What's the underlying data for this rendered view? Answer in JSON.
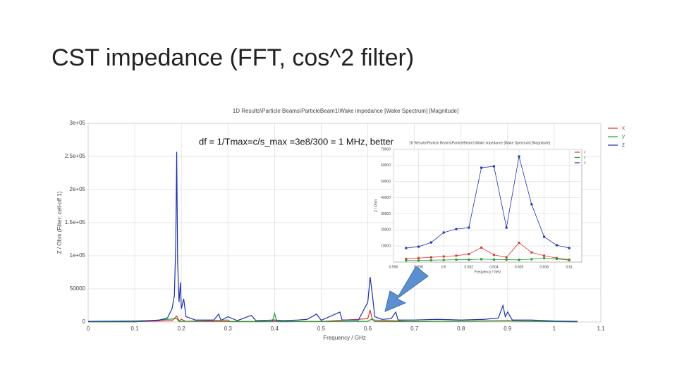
{
  "slide": {
    "title": "CST impedance (FFT, cos^2 filter)",
    "annotation": "df = 1/Tmax=c/s_max =3e8/300 = 1 MHz, better"
  },
  "chart_data": [
    {
      "type": "line",
      "title": "1D Results\\Particle Beams\\ParticleBeam1\\Wake impedance [Wake Spectrum] [Magnitude]",
      "xlabel": "Frequency / GHz",
      "ylabel": "Z / Ohm (Filter: cell-off 1)",
      "xlim": [
        0,
        1.1
      ],
      "ylim": [
        0,
        300000
      ],
      "xticks": [
        0,
        0.1,
        0.2,
        0.3,
        0.4,
        0.5,
        0.6,
        0.7,
        0.8,
        0.9,
        1,
        1.1
      ],
      "yticks": [
        0,
        50000,
        {
          "value": 100000,
          "label": "1e+05"
        },
        {
          "value": 150000,
          "label": "1.5e+05"
        },
        {
          "value": 200000,
          "label": "2e+05"
        },
        {
          "value": 250000,
          "label": "2.5e+05"
        },
        {
          "value": 300000,
          "label": "3e+05"
        }
      ],
      "grid": true,
      "legend": "top-right",
      "series": [
        {
          "name": "x",
          "color": "#e03030",
          "x": [
            0,
            0.1,
            0.18,
            0.19,
            0.195,
            0.2,
            0.21,
            0.3,
            0.5,
            0.6,
            0.605,
            0.61,
            0.7,
            0.9,
            1.05
          ],
          "values": [
            300,
            500,
            2000,
            9000,
            2000,
            4000,
            1000,
            800,
            800,
            5000,
            18000,
            3000,
            800,
            2000,
            300
          ]
        },
        {
          "name": "y",
          "color": "#20a020",
          "x": [
            0,
            0.1,
            0.19,
            0.195,
            0.3,
            0.305,
            0.395,
            0.4,
            0.405,
            0.6,
            0.61,
            0.615,
            0.9,
            1.05
          ],
          "values": [
            200,
            300,
            5000,
            800,
            3000,
            500,
            500,
            13000,
            500,
            1000,
            5000,
            600,
            1500,
            200
          ]
        },
        {
          "name": "z",
          "color": "#1a2fb8",
          "x": [
            0,
            0.05,
            0.1,
            0.15,
            0.17,
            0.18,
            0.185,
            0.188,
            0.19,
            0.192,
            0.195,
            0.198,
            0.2,
            0.205,
            0.21,
            0.23,
            0.27,
            0.28,
            0.285,
            0.3,
            0.32,
            0.35,
            0.36,
            0.4,
            0.42,
            0.45,
            0.47,
            0.49,
            0.5,
            0.54,
            0.545,
            0.58,
            0.6,
            0.605,
            0.61,
            0.615,
            0.63,
            0.65,
            0.66,
            0.665,
            0.7,
            0.75,
            0.8,
            0.85,
            0.88,
            0.89,
            0.895,
            0.9,
            0.91,
            0.95,
            1,
            1.05
          ],
          "values": [
            1000,
            1200,
            1500,
            2500,
            6000,
            20000,
            40000,
            120000,
            257000,
            90000,
            30000,
            60000,
            20000,
            35000,
            8000,
            3000,
            3000,
            12000,
            2500,
            8000,
            2000,
            10000,
            2000,
            3000,
            2000,
            3000,
            4000,
            12000,
            2500,
            15000,
            3000,
            3000,
            30000,
            68000,
            40000,
            8000,
            4000,
            5000,
            15000,
            3000,
            3000,
            4000,
            3000,
            4000,
            6000,
            25000,
            8000,
            15000,
            3000,
            3000,
            1500,
            1000
          ]
        }
      ]
    },
    {
      "type": "line",
      "title": "1D Results\\Particle Beams\\ParticleBeam1\\Wake impedance [Wake Spectrum] [Magnitude]",
      "xlabel": "Frequency / GHz",
      "ylabel": "Z / Ohm",
      "xlim": [
        0.596,
        0.611
      ],
      "ylim": [
        0,
        70000
      ],
      "xticks": [
        0.596,
        0.598,
        0.6,
        0.602,
        0.604,
        0.606,
        0.608,
        0.61
      ],
      "yticks": [
        10000,
        20000,
        30000,
        40000,
        50000,
        60000,
        70000
      ],
      "grid": true,
      "legend": "top-right",
      "markers": true,
      "series": [
        {
          "name": "x",
          "color": "#e03030",
          "x": [
            0.597,
            0.598,
            0.599,
            0.6,
            0.601,
            0.602,
            0.603,
            0.604,
            0.605,
            0.606,
            0.607,
            0.608,
            0.609,
            0.61
          ],
          "values": [
            2000,
            2500,
            3000,
            3500,
            4000,
            5000,
            9000,
            4500,
            3000,
            12000,
            6000,
            4000,
            2500,
            1500
          ]
        },
        {
          "name": "y",
          "color": "#20a020",
          "x": [
            0.597,
            0.598,
            0.599,
            0.6,
            0.601,
            0.602,
            0.603,
            0.604,
            0.605,
            0.606,
            0.607,
            0.608,
            0.609,
            0.61
          ],
          "values": [
            1000,
            1000,
            1200,
            1300,
            1500,
            1500,
            1800,
            1600,
            1500,
            1400,
            1800,
            2500,
            2000,
            1200
          ]
        },
        {
          "name": "z",
          "color": "#1a2fb8",
          "x": [
            0.597,
            0.598,
            0.599,
            0.6,
            0.601,
            0.602,
            0.603,
            0.604,
            0.605,
            0.606,
            0.607,
            0.608,
            0.609,
            0.61
          ],
          "values": [
            8700,
            9600,
            12200,
            18400,
            20500,
            21400,
            58600,
            59500,
            21400,
            65600,
            35900,
            15700,
            10500,
            8700
          ]
        }
      ]
    }
  ]
}
